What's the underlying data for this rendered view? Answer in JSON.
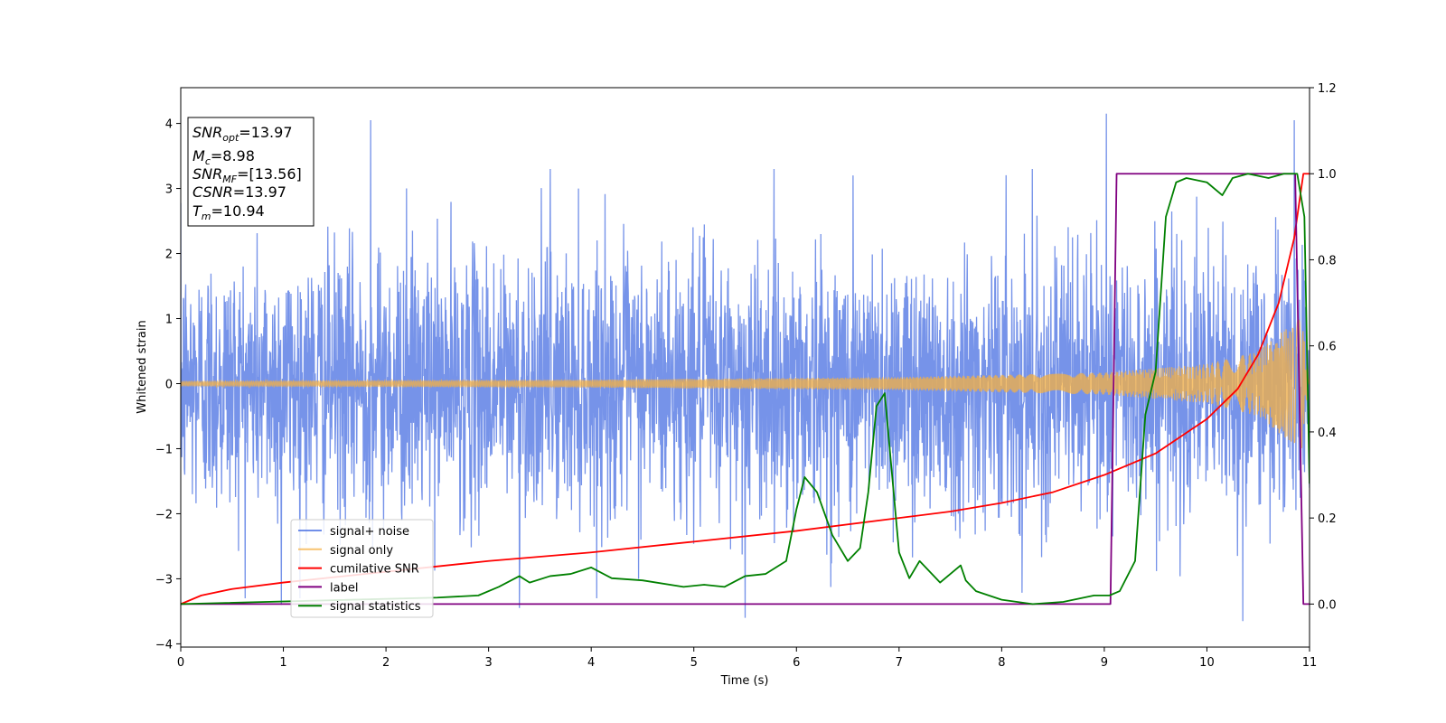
{
  "chart_data": {
    "type": "line",
    "title": "",
    "xlabel": "Time (s)",
    "ylabel": "Whitened strain",
    "xlim": [
      0,
      11
    ],
    "ylim": [
      -4.05,
      4.55
    ],
    "y2lim": [
      -0.1,
      1.2
    ],
    "x_ticks": [
      0,
      1,
      2,
      3,
      4,
      5,
      6,
      7,
      8,
      9,
      10,
      11
    ],
    "y_ticks": [
      -4,
      -3,
      -2,
      -1,
      0,
      1,
      2,
      3,
      4
    ],
    "y2_ticks": [
      "0.0",
      "0.2",
      "0.4",
      "0.6",
      "0.8",
      "1.0",
      "1.2"
    ],
    "grid": false,
    "legend_position": "lower-left",
    "annotation": {
      "lines": [
        {
          "var": "SNR",
          "sub": "opt",
          "value": "=13.97"
        },
        {
          "var": "M",
          "sub": "c",
          "value": "=8.98"
        },
        {
          "var": "SNR",
          "sub": "MF",
          "value": "=[13.56]"
        },
        {
          "var": "CSNR",
          "sub": "",
          "value": "=13.97"
        },
        {
          "var": "T",
          "sub": "m",
          "value": "=10.94"
        }
      ]
    },
    "series": [
      {
        "name": "signal+ noise",
        "color": "#4169e1",
        "axis": "left",
        "kind": "noise",
        "noise_sigma": 1.0,
        "peaks": [
          [
            1.85,
            4.05
          ],
          [
            9.02,
            4.15
          ],
          [
            10.85,
            4.05
          ],
          [
            10.35,
            -3.65
          ],
          [
            5.5,
            -3.6
          ],
          [
            3.3,
            -3.45
          ],
          [
            0.98,
            -3.4
          ],
          [
            2.2,
            3.0
          ],
          [
            3.6,
            3.3
          ],
          [
            6.55,
            3.2
          ],
          [
            8.3,
            3.3
          ]
        ]
      },
      {
        "name": "signal only",
        "color": "#f5b041",
        "axis": "left",
        "kind": "chirp",
        "amplitude_envelope": [
          [
            0,
            0.04
          ],
          [
            4,
            0.06
          ],
          [
            7,
            0.1
          ],
          [
            9,
            0.17
          ],
          [
            10,
            0.3
          ],
          [
            10.5,
            0.5
          ],
          [
            10.85,
            0.95
          ],
          [
            10.93,
            1.0
          ],
          [
            11,
            0.0
          ]
        ]
      },
      {
        "name": "cumilative SNR",
        "color": "#ff0000",
        "axis": "right",
        "x": [
          0,
          0.2,
          0.5,
          1,
          2,
          3,
          4,
          5,
          6,
          7,
          7.5,
          8,
          8.5,
          9,
          9.5,
          10,
          10.3,
          10.5,
          10.7,
          10.85,
          10.94,
          11
        ],
        "y": [
          0.0,
          0.02,
          0.035,
          0.05,
          0.075,
          0.1,
          0.12,
          0.145,
          0.17,
          0.2,
          0.215,
          0.235,
          0.26,
          0.3,
          0.35,
          0.43,
          0.5,
          0.58,
          0.7,
          0.85,
          1.0,
          1.0
        ]
      },
      {
        "name": "label",
        "color": "#800080",
        "axis": "right",
        "x": [
          0,
          9.06,
          9.12,
          10.86,
          10.94,
          11
        ],
        "y": [
          0.0,
          0.0,
          1.0,
          1.0,
          0.0,
          0.0
        ]
      },
      {
        "name": "signal statistics",
        "color": "#008000",
        "axis": "right",
        "x": [
          0,
          2.5,
          2.9,
          3.1,
          3.3,
          3.4,
          3.6,
          3.8,
          4.0,
          4.2,
          4.5,
          4.9,
          5.1,
          5.3,
          5.5,
          5.7,
          5.9,
          6.0,
          6.08,
          6.2,
          6.35,
          6.5,
          6.62,
          6.7,
          6.78,
          6.86,
          7.0,
          7.1,
          7.2,
          7.4,
          7.6,
          7.65,
          7.75,
          8.0,
          8.3,
          8.6,
          8.9,
          9.05,
          9.15,
          9.3,
          9.4,
          9.5,
          9.6,
          9.7,
          9.8,
          10.0,
          10.15,
          10.25,
          10.4,
          10.6,
          10.75,
          10.88,
          10.95,
          11
        ],
        "y": [
          0.0,
          0.015,
          0.02,
          0.04,
          0.065,
          0.05,
          0.065,
          0.07,
          0.085,
          0.06,
          0.055,
          0.04,
          0.045,
          0.04,
          0.065,
          0.07,
          0.1,
          0.22,
          0.295,
          0.26,
          0.16,
          0.1,
          0.13,
          0.26,
          0.46,
          0.49,
          0.12,
          0.06,
          0.1,
          0.05,
          0.09,
          0.055,
          0.03,
          0.01,
          0.0,
          0.005,
          0.02,
          0.02,
          0.03,
          0.1,
          0.44,
          0.54,
          0.9,
          0.98,
          0.99,
          0.98,
          0.95,
          0.99,
          1.0,
          0.99,
          1.0,
          1.0,
          0.9,
          0.28
        ]
      }
    ]
  }
}
